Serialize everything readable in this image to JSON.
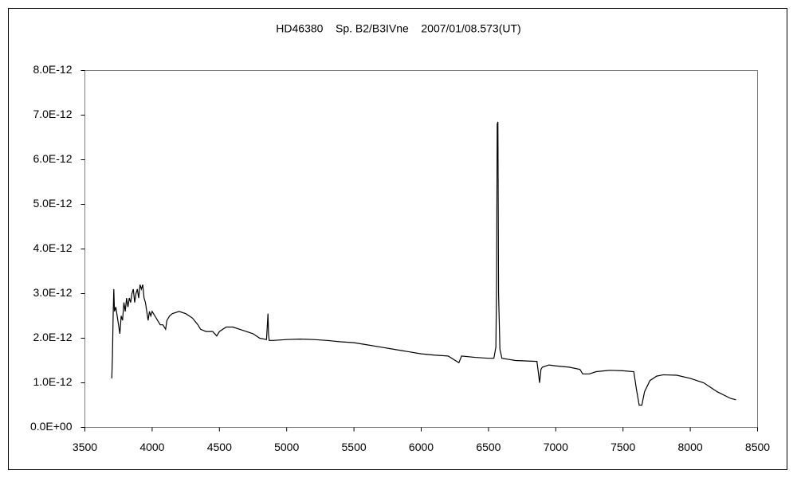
{
  "chart_data": {
    "type": "line",
    "title": "HD46380    Sp. B2/B3IVne    2007/01/08.573(UT)",
    "color": "#000000",
    "x": [
      3700,
      3705,
      3710,
      3715,
      3720,
      3730,
      3740,
      3750,
      3760,
      3770,
      3780,
      3790,
      3800,
      3810,
      3820,
      3830,
      3840,
      3850,
      3860,
      3870,
      3880,
      3890,
      3900,
      3910,
      3920,
      3930,
      3940,
      3950,
      3960,
      3970,
      3980,
      3990,
      4000,
      4020,
      4040,
      4060,
      4080,
      4100,
      4110,
      4130,
      4150,
      4200,
      4250,
      4300,
      4340,
      4360,
      4400,
      4450,
      4480,
      4500,
      4550,
      4600,
      4650,
      4700,
      4750,
      4800,
      4850,
      4861,
      4865,
      4870,
      4900,
      5000,
      5100,
      5200,
      5300,
      5400,
      5500,
      5600,
      5700,
      5800,
      5900,
      6000,
      6100,
      6200,
      6280,
      6300,
      6400,
      6500,
      6540,
      6555,
      6560,
      6565,
      6570,
      6575,
      6585,
      6600,
      6700,
      6860,
      6870,
      6880,
      6890,
      6900,
      6950,
      7000,
      7100,
      7180,
      7200,
      7250,
      7300,
      7400,
      7500,
      7580,
      7600,
      7620,
      7640,
      7660,
      7700,
      7750,
      7800,
      7900,
      8000,
      8100,
      8200,
      8300,
      8340
    ],
    "values": [
      1.1e-12,
      1.6e-12,
      2.5e-12,
      3.1e-12,
      2.6e-12,
      2.7e-12,
      2.5e-12,
      2.3e-12,
      2.1e-12,
      2.5e-12,
      2.4e-12,
      2.8e-12,
      2.6e-12,
      2.9e-12,
      2.7e-12,
      2.9e-12,
      2.8e-12,
      3e-12,
      3.1e-12,
      2.8e-12,
      3e-12,
      3.1e-12,
      2.9e-12,
      3.2e-12,
      3.1e-12,
      3.2e-12,
      2.9e-12,
      2.8e-12,
      2.6e-12,
      2.4e-12,
      2.6e-12,
      2.5e-12,
      2.6e-12,
      2.5e-12,
      2.4e-12,
      2.3e-12,
      2.3e-12,
      2.2e-12,
      2.4e-12,
      2.5e-12,
      2.55e-12,
      2.6e-12,
      2.55e-12,
      2.45e-12,
      2.3e-12,
      2.2e-12,
      2.15e-12,
      2.15e-12,
      2.05e-12,
      2.15e-12,
      2.25e-12,
      2.25e-12,
      2.2e-12,
      2.15e-12,
      2.1e-12,
      2e-12,
      1.97e-12,
      2.55e-12,
      2.1e-12,
      1.95e-12,
      1.95e-12,
      1.97e-12,
      1.98e-12,
      1.97e-12,
      1.95e-12,
      1.92e-12,
      1.9e-12,
      1.85e-12,
      1.8e-12,
      1.75e-12,
      1.7e-12,
      1.65e-12,
      1.62e-12,
      1.6e-12,
      1.45e-12,
      1.6e-12,
      1.57e-12,
      1.55e-12,
      1.55e-12,
      1.8e-12,
      3.2e-12,
      6.8e-12,
      6.85e-12,
      3e-12,
      1.75e-12,
      1.55e-12,
      1.5e-12,
      1.48e-12,
      1.25e-12,
      1e-12,
      1.3e-12,
      1.35e-12,
      1.4e-12,
      1.38e-12,
      1.35e-12,
      1.3e-12,
      1.2e-12,
      1.2e-12,
      1.25e-12,
      1.28e-12,
      1.27e-12,
      1.25e-12,
      8.5e-13,
      5e-13,
      5e-13,
      8e-13,
      1.05e-12,
      1.15e-12,
      1.18e-12,
      1.17e-12,
      1.1e-12,
      1e-12,
      8e-13,
      6.5e-13,
      6.2e-13
    ],
    "xlim": [
      3500,
      8500
    ],
    "xticks": [
      3500,
      4000,
      4500,
      5000,
      5500,
      6000,
      6500,
      7000,
      7500,
      8000,
      8500
    ],
    "ylim": [
      0,
      8e-12
    ],
    "yticks": [
      {
        "value": 0,
        "label": "0.0E+00"
      },
      {
        "value": 1e-12,
        "label": "1.0E-12"
      },
      {
        "value": 2e-12,
        "label": "2.0E-12"
      },
      {
        "value": 3e-12,
        "label": "3.0E-12"
      },
      {
        "value": 4e-12,
        "label": "4.0E-12"
      },
      {
        "value": 5e-12,
        "label": "5.0E-12"
      },
      {
        "value": 6e-12,
        "label": "6.0E-12"
      },
      {
        "value": 7e-12,
        "label": "7.0E-12"
      },
      {
        "value": 8e-12,
        "label": "8.0E-12"
      }
    ]
  }
}
